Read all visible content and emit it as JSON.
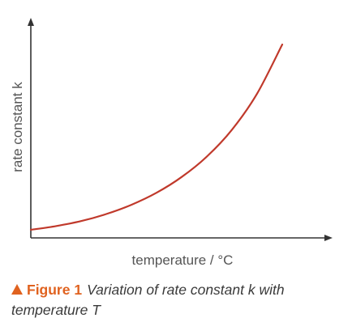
{
  "chart_data": {
    "type": "line",
    "xlabel": "temperature / °C",
    "ylabel": "rate constant k",
    "ticks": "none",
    "grid": false,
    "series": [
      {
        "color": "#c0392b",
        "x": [
          0.0,
          0.1,
          0.2,
          0.3,
          0.4,
          0.5,
          0.6,
          0.7,
          0.8,
          0.9,
          1.0
        ],
        "y": [
          0.0,
          0.02,
          0.047,
          0.085,
          0.135,
          0.2,
          0.285,
          0.395,
          0.54,
          0.735,
          1.0
        ]
      }
    ]
  },
  "caption": {
    "icon": "triangle-icon",
    "label": "Figure 1",
    "text": "Variation of rate constant k with temperature T",
    "accent_color": "#e0621f"
  }
}
